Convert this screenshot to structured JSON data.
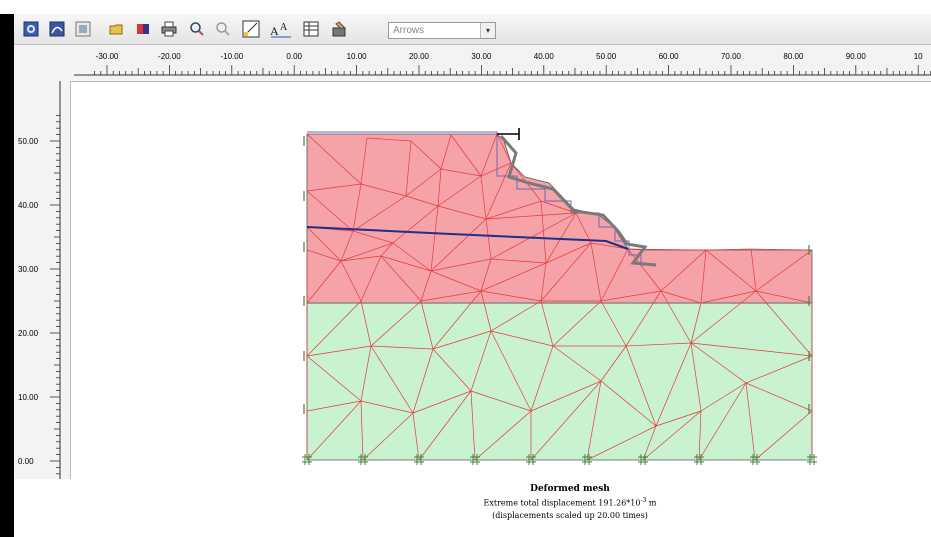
{
  "toolbar": {
    "display_select": {
      "value": "Arrows"
    },
    "buttons": [
      {
        "name": "calculations-icon",
        "glyph": "calc"
      },
      {
        "name": "curves-icon",
        "glyph": "curve"
      },
      {
        "name": "input-icon",
        "glyph": "input"
      },
      {
        "name": "open-icon",
        "glyph": "open"
      },
      {
        "name": "color-icon",
        "glyph": "color"
      },
      {
        "name": "print-icon",
        "glyph": "print"
      },
      {
        "name": "zoom-in-icon",
        "glyph": "zin"
      },
      {
        "name": "zoom-out-icon",
        "glyph": "zout"
      },
      {
        "name": "scale-icon",
        "glyph": "scale"
      },
      {
        "name": "font-size-icon",
        "glyph": "font"
      },
      {
        "name": "table-icon",
        "glyph": "table"
      },
      {
        "name": "tools-icon",
        "glyph": "tools"
      }
    ]
  },
  "rulers": {
    "horizontal_labels": [
      "-30.00",
      "-20.00",
      "-10.00",
      "0.00",
      "10.00",
      "20.00",
      "30.00",
      "40.00",
      "50.00",
      "60.00",
      "70.00",
      "80.00",
      "90.00",
      "10"
    ],
    "vertical_labels": [
      "50.00",
      "40.00",
      "30.00",
      "20.00",
      "10.00",
      "0.00"
    ]
  },
  "caption": {
    "title": "Deformed mesh",
    "line1_prefix": "Extreme total displacement 191.26*10",
    "line1_exponent": "-3",
    "line1_suffix": " m",
    "line2": "(displacements scaled up 20.00 times)"
  },
  "colors": {
    "upper_layer": "#f5a3a8",
    "lower_layer": "#c8f2d0",
    "mesh_line": "#e23c3c",
    "phreatic_line": "#1f2f8a",
    "wall": "#7a7a7a"
  }
}
